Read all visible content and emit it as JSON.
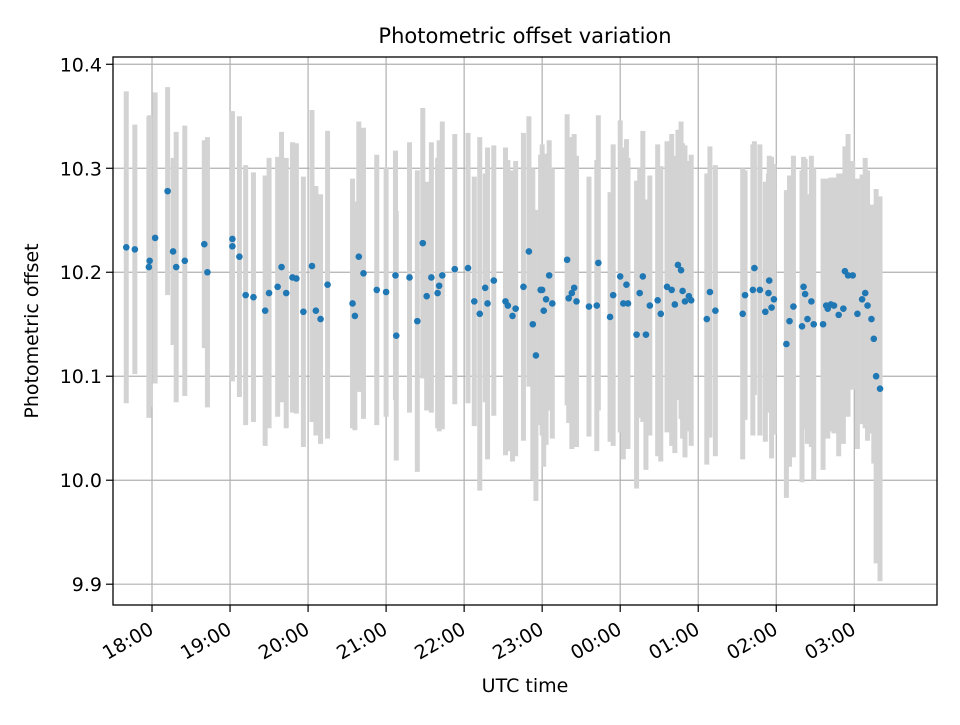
{
  "chart_data": {
    "type": "scatter",
    "title": "Photometric offset variation",
    "xlabel": "UTC time",
    "ylabel": "Photometric offset",
    "xlim": [
      -0.5,
      10.06
    ],
    "ylim": [
      9.88,
      10.407
    ],
    "grid": true,
    "x_ticks": [
      {
        "pos": 0,
        "label": "18:00"
      },
      {
        "pos": 1,
        "label": "19:00"
      },
      {
        "pos": 2,
        "label": "20:00"
      },
      {
        "pos": 3,
        "label": "21:00"
      },
      {
        "pos": 4,
        "label": "22:00"
      },
      {
        "pos": 5,
        "label": "23:00"
      },
      {
        "pos": 6,
        "label": "00:00"
      },
      {
        "pos": 7,
        "label": "01:00"
      },
      {
        "pos": 8,
        "label": "02:00"
      },
      {
        "pos": 9,
        "label": "03:00"
      }
    ],
    "y_ticks": [
      {
        "pos": 9.9,
        "label": "9.9"
      },
      {
        "pos": 10.0,
        "label": "10.0"
      },
      {
        "pos": 10.1,
        "label": "10.1"
      },
      {
        "pos": 10.2,
        "label": "10.2"
      },
      {
        "pos": 10.3,
        "label": "10.3"
      },
      {
        "pos": 10.4,
        "label": "10.4"
      }
    ],
    "series": [
      {
        "name": "offset",
        "marker_color": "#1f77b4",
        "errorbar_color": "#d3d3d3",
        "x_unit": "hours after 18:00 UTC",
        "points": [
          [
            -0.33,
            10.224,
            0.15
          ],
          [
            -0.22,
            10.222,
            0.12
          ],
          [
            -0.04,
            10.205,
            0.145
          ],
          [
            -0.03,
            10.211,
            0.14
          ],
          [
            0.04,
            10.233,
            0.14
          ],
          [
            0.2,
            10.278,
            0.1
          ],
          [
            0.27,
            10.22,
            0.09
          ],
          [
            0.31,
            10.205,
            0.13
          ],
          [
            0.42,
            10.211,
            0.13
          ],
          [
            0.67,
            10.227,
            0.1
          ],
          [
            0.71,
            10.2,
            0.13
          ],
          [
            1.03,
            10.232,
            0.12
          ],
          [
            1.03,
            10.225,
            0.13
          ],
          [
            1.12,
            10.215,
            0.135
          ],
          [
            1.2,
            10.178,
            0.125
          ],
          [
            1.3,
            10.176,
            0.12
          ],
          [
            1.45,
            10.163,
            0.13
          ],
          [
            1.5,
            10.18,
            0.13
          ],
          [
            1.61,
            10.186,
            0.125
          ],
          [
            1.66,
            10.205,
            0.13
          ],
          [
            1.72,
            10.18,
            0.13
          ],
          [
            1.8,
            10.195,
            0.13
          ],
          [
            1.85,
            10.194,
            0.13
          ],
          [
            1.94,
            10.162,
            0.13
          ],
          [
            2.05,
            10.206,
            0.15
          ],
          [
            2.1,
            10.163,
            0.12
          ],
          [
            2.16,
            10.155,
            0.12
          ],
          [
            2.25,
            10.188,
            0.148
          ],
          [
            2.57,
            10.17,
            0.12
          ],
          [
            2.6,
            10.158,
            0.11
          ],
          [
            2.65,
            10.215,
            0.13
          ],
          [
            2.71,
            10.199,
            0.14
          ],
          [
            2.88,
            10.183,
            0.13
          ],
          [
            3.0,
            10.181,
            0.12
          ],
          [
            3.12,
            10.197,
            0.12
          ],
          [
            3.13,
            10.139,
            0.12
          ],
          [
            3.3,
            10.195,
            0.13
          ],
          [
            3.4,
            10.153,
            0.145
          ],
          [
            3.47,
            10.228,
            0.13
          ],
          [
            3.52,
            10.177,
            0.11
          ],
          [
            3.58,
            10.195,
            0.13
          ],
          [
            3.66,
            10.18,
            0.13
          ],
          [
            3.68,
            10.187,
            0.14
          ],
          [
            3.72,
            10.197,
            0.148
          ],
          [
            3.88,
            10.203,
            0.13
          ],
          [
            4.05,
            10.204,
            0.13
          ],
          [
            4.13,
            10.172,
            0.12
          ],
          [
            4.2,
            10.16,
            0.17
          ],
          [
            4.27,
            10.185,
            0.11
          ],
          [
            4.3,
            10.17,
            0.15
          ],
          [
            4.38,
            10.192,
            0.13
          ],
          [
            4.53,
            10.172,
            0.148
          ],
          [
            4.56,
            10.168,
            0.14
          ],
          [
            4.62,
            10.158,
            0.14
          ],
          [
            4.66,
            10.165,
            0.142
          ],
          [
            4.76,
            10.186,
            0.148
          ],
          [
            4.83,
            10.22,
            0.13
          ],
          [
            4.88,
            10.15,
            0.15
          ],
          [
            4.92,
            10.12,
            0.14
          ],
          [
            4.98,
            10.183,
            0.13
          ],
          [
            5.0,
            10.183,
            0.14
          ],
          [
            5.02,
            10.163,
            0.15
          ],
          [
            5.05,
            10.174,
            0.14
          ],
          [
            5.09,
            10.197,
            0.13
          ],
          [
            5.13,
            10.17,
            0.13
          ],
          [
            5.32,
            10.212,
            0.14
          ],
          [
            5.34,
            10.175,
            0.12
          ],
          [
            5.38,
            10.18,
            0.15
          ],
          [
            5.41,
            10.185,
            0.148
          ],
          [
            5.44,
            10.172,
            0.14
          ],
          [
            5.6,
            10.167,
            0.125
          ],
          [
            5.7,
            10.168,
            0.14
          ],
          [
            5.72,
            10.209,
            0.142
          ],
          [
            5.87,
            10.157,
            0.12
          ],
          [
            5.91,
            10.178,
            0.145
          ],
          [
            6.0,
            10.196,
            0.15
          ],
          [
            6.04,
            10.17,
            0.15
          ],
          [
            6.08,
            10.188,
            0.14
          ],
          [
            6.1,
            10.17,
            0.14
          ],
          [
            6.21,
            10.14,
            0.148
          ],
          [
            6.25,
            10.18,
            0.12
          ],
          [
            6.29,
            10.196,
            0.14
          ],
          [
            6.33,
            10.14,
            0.13
          ],
          [
            6.38,
            10.168,
            0.125
          ],
          [
            6.48,
            10.173,
            0.15
          ],
          [
            6.52,
            10.16,
            0.142
          ],
          [
            6.6,
            10.186,
            0.14
          ],
          [
            6.66,
            10.183,
            0.15
          ],
          [
            6.7,
            10.169,
            0.143
          ],
          [
            6.74,
            10.207,
            0.13
          ],
          [
            6.78,
            10.202,
            0.143
          ],
          [
            6.8,
            10.182,
            0.142
          ],
          [
            6.83,
            10.172,
            0.15
          ],
          [
            6.88,
            10.177,
            0.13
          ],
          [
            6.91,
            10.173,
            0.14
          ],
          [
            7.11,
            10.155,
            0.14
          ],
          [
            7.15,
            10.181,
            0.14
          ],
          [
            7.22,
            10.163,
            0.14
          ],
          [
            7.57,
            10.16,
            0.14
          ],
          [
            7.6,
            10.178,
            0.12
          ],
          [
            7.7,
            10.183,
            0.14
          ],
          [
            7.72,
            10.204,
            0.122
          ],
          [
            7.79,
            10.183,
            0.14
          ],
          [
            7.86,
            10.162,
            0.125
          ],
          [
            7.9,
            10.18,
            0.115
          ],
          [
            7.91,
            10.192,
            0.12
          ],
          [
            7.94,
            10.166,
            0.145
          ],
          [
            7.97,
            10.174,
            0.13
          ],
          [
            8.13,
            10.131,
            0.148
          ],
          [
            8.17,
            10.153,
            0.14
          ],
          [
            8.22,
            10.167,
            0.145
          ],
          [
            8.33,
            10.148,
            0.15
          ],
          [
            8.35,
            10.186,
            0.125
          ],
          [
            8.37,
            10.179,
            0.13
          ],
          [
            8.4,
            10.155,
            0.12
          ],
          [
            8.45,
            10.172,
            0.14
          ],
          [
            8.48,
            10.15,
            0.15
          ],
          [
            8.6,
            10.15,
            0.14
          ],
          [
            8.64,
            10.168,
            0.12
          ],
          [
            8.66,
            10.165,
            0.125
          ],
          [
            8.7,
            10.169,
            0.122
          ],
          [
            8.74,
            10.168,
            0.123
          ],
          [
            8.8,
            10.159,
            0.136
          ],
          [
            8.86,
            10.165,
            0.13
          ],
          [
            8.88,
            10.201,
            0.12
          ],
          [
            8.92,
            10.197,
            0.136
          ],
          [
            8.98,
            10.197,
            0.11
          ],
          [
            9.04,
            10.16,
            0.13
          ],
          [
            9.1,
            10.174,
            0.12
          ],
          [
            9.14,
            10.18,
            0.13
          ],
          [
            9.17,
            10.168,
            0.13
          ],
          [
            9.22,
            10.155,
            0.11
          ],
          [
            9.25,
            10.136,
            0.12
          ],
          [
            9.28,
            10.1,
            0.18
          ],
          [
            9.33,
            10.088,
            0.185
          ]
        ]
      }
    ]
  }
}
